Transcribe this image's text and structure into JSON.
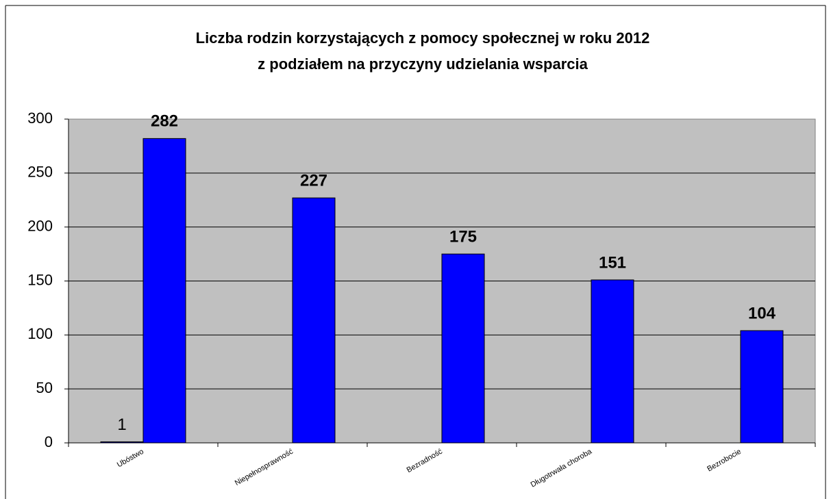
{
  "chart_data": {
    "type": "bar",
    "title": [
      "Liczba rodzin korzystających z pomocy społecznej w roku 2012",
      "z podziałem na przyczyny udzielania wsparcia"
    ],
    "categories": [
      "Ubóstwo",
      "Niepełnosprawność",
      "Bezradność",
      "Długotrwała choroba",
      "Bezrobocie"
    ],
    "series": [
      {
        "color": "#000080",
        "values": [
          1,
          null,
          null,
          null,
          null
        ]
      },
      {
        "color": "#0000ff",
        "values": [
          282,
          227,
          175,
          151,
          104
        ]
      }
    ],
    "ylim": [
      0,
      300
    ],
    "yticks": [
      0,
      50,
      100,
      150,
      200,
      250,
      300
    ],
    "grid": true
  }
}
